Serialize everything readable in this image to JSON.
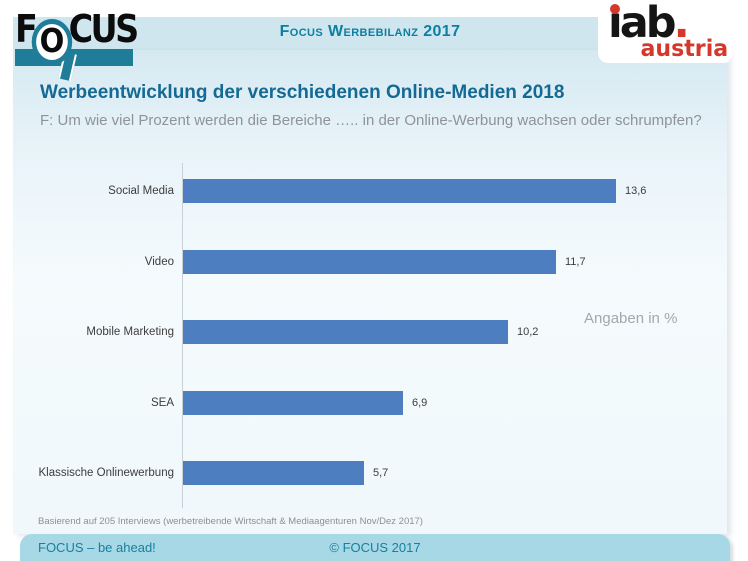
{
  "header": {
    "band_title": "Focus Werbebilanz 2017",
    "focus_logo": {
      "part1": "F",
      "part2": "O",
      "part3": "CUS"
    },
    "iab_logo": {
      "word": "ıab",
      "dot": ".",
      "subline": "austria"
    }
  },
  "title": "Werbeentwicklung der verschiedenen Online-Medien 2018",
  "question": "F: Um wie viel Prozent werden die Bereiche ….. in der Online-Werbung wachsen oder schrumpfen?",
  "chart_data": {
    "type": "bar",
    "orientation": "horizontal",
    "title": "Werbeentwicklung der verschiedenen Online-Medien 2018",
    "categories": [
      "Social Media",
      "Video",
      "Mobile Marketing",
      "SEA",
      "Klassische Onlinewerbung"
    ],
    "values": [
      13.6,
      11.7,
      10.2,
      6.9,
      5.7
    ],
    "value_labels": [
      "13,6",
      "11,7",
      "10,2",
      "6,9",
      "5,7"
    ],
    "unit_note": "Angaben in %",
    "xlim": [
      0,
      17
    ],
    "grid": false,
    "legend": false,
    "bar_color": "#4d7ec0"
  },
  "footnote": "Basierend auf 205 Interviews (werbetreibende Wirtschaft & Mediaagenturen Nov/Dez 2017)",
  "footer": {
    "left": "FOCUS – be ahead!",
    "center": "© FOCUS 2017"
  },
  "colors": {
    "accent_teal": "#207d99",
    "header_band": "#cfe6ef",
    "title_text": "#146a94",
    "bar_blue": "#4d7ec0",
    "footer_band": "#a6d8e6",
    "logo_red": "#d4382b"
  }
}
